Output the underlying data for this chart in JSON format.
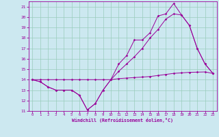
{
  "xlabel": "Windchill (Refroidissement éolien,°C)",
  "background_color": "#cce8f0",
  "grid_color": "#99ccbb",
  "line_color": "#990099",
  "xlim": [
    -0.5,
    23.5
  ],
  "ylim": [
    11,
    21.5
  ],
  "xticks": [
    0,
    1,
    2,
    3,
    4,
    5,
    6,
    7,
    8,
    9,
    10,
    11,
    12,
    13,
    14,
    15,
    16,
    17,
    18,
    19,
    20,
    21,
    22,
    23
  ],
  "yticks": [
    11,
    12,
    13,
    14,
    15,
    16,
    17,
    18,
    19,
    20,
    21
  ],
  "series1_x": [
    0,
    1,
    2,
    3,
    4,
    5,
    6,
    7,
    8,
    9,
    10,
    11,
    12,
    13,
    14,
    15,
    16,
    17,
    18,
    19,
    20,
    21,
    22,
    23
  ],
  "series1_y": [
    14.0,
    13.8,
    13.3,
    13.0,
    13.0,
    13.0,
    12.5,
    11.1,
    11.7,
    13.0,
    14.0,
    14.1,
    14.15,
    14.2,
    14.25,
    14.3,
    14.4,
    14.5,
    14.6,
    14.65,
    14.7,
    14.72,
    14.74,
    14.6
  ],
  "series2_x": [
    0,
    1,
    2,
    3,
    4,
    5,
    6,
    7,
    8,
    9,
    10,
    11,
    12,
    13,
    14,
    15,
    16,
    17,
    18,
    19,
    20,
    21,
    22,
    23
  ],
  "series2_y": [
    14.0,
    13.8,
    13.3,
    13.0,
    13.0,
    13.0,
    12.5,
    11.1,
    11.7,
    13.0,
    14.0,
    15.5,
    16.3,
    17.8,
    17.8,
    18.5,
    20.1,
    20.3,
    21.3,
    20.2,
    19.2,
    17.0,
    15.5,
    14.6
  ],
  "series3_x": [
    0,
    1,
    2,
    3,
    4,
    5,
    6,
    7,
    8,
    9,
    10,
    11,
    12,
    13,
    14,
    15,
    16,
    17,
    18,
    19,
    20,
    21,
    22,
    23
  ],
  "series3_y": [
    14.0,
    14.0,
    14.0,
    14.0,
    14.0,
    14.0,
    14.0,
    14.0,
    14.0,
    14.0,
    14.0,
    14.8,
    15.5,
    16.2,
    17.0,
    18.0,
    18.8,
    19.8,
    20.3,
    20.2,
    19.2,
    17.0,
    15.5,
    14.6
  ]
}
